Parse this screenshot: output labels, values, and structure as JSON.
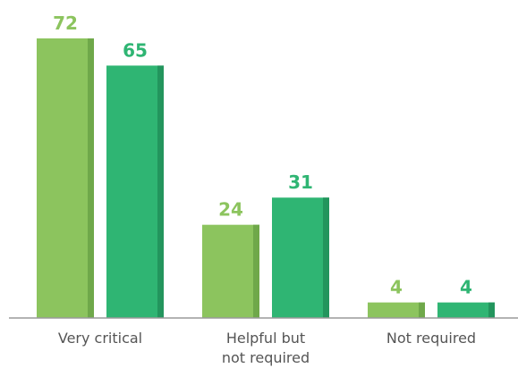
{
  "chart_data": {
    "type": "bar",
    "categories": [
      "Very critical",
      "Helpful but not required",
      "Not required"
    ],
    "category_lines": [
      [
        "Very critical"
      ],
      [
        "Helpful but",
        "not required"
      ],
      [
        "Not required"
      ]
    ],
    "series": [
      {
        "values": [
          72,
          24,
          4
        ],
        "color": "#8cc45e",
        "edge_color": "#6fa84a"
      },
      {
        "values": [
          65,
          31,
          4
        ],
        "color": "#2fb573",
        "edge_color": "#23955d"
      }
    ],
    "ylim": [
      0,
      72
    ],
    "grid": false,
    "legend": "none",
    "title": "",
    "xlabel": "",
    "ylabel": ""
  }
}
